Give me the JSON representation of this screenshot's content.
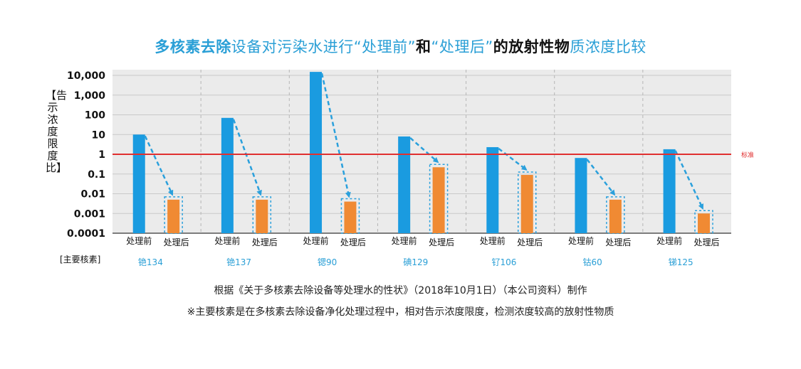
{
  "title": {
    "parts": [
      {
        "text": "多核素去除",
        "style": "hl"
      },
      {
        "text": "设备对污染水进行",
        "style": "nm"
      },
      {
        "text": "“处理前”",
        "style": "nm"
      },
      {
        "text": "和",
        "style": "bk"
      },
      {
        "text": "“处理后”",
        "style": "nm"
      },
      {
        "text": "的放射性物",
        "style": "bk"
      },
      {
        "text": "质浓度比较",
        "style": "nm"
      }
    ]
  },
  "y_axis_label": "【告示浓度限度比】",
  "nuclide_axis_label": "[主要核素]",
  "footnotes": {
    "source": "根据《关于多核素去除设备等处理水的性状》（2018年10月1日）（本公司资料）制作",
    "note": "※主要核素是在多核素去除设备净化处理过程中，相对告示浓度限度，检测浓度较高的放射性物质"
  },
  "colors": {
    "before": "#1a9be0",
    "after": "#f08a33",
    "arrow": "#2aa0dc",
    "standard_line": "#e03030",
    "plot_bg": "#ebebeb",
    "nuclide_text": "#2a9fd6"
  },
  "chart_data": {
    "type": "bar",
    "scale": "log",
    "ylim": [
      0.0001,
      10000
    ],
    "y_ticks": [
      "10,000",
      "1,000",
      "100",
      "10",
      "1",
      "0.1",
      "0.01",
      "0.001",
      "0.0001"
    ],
    "y_tick_values": [
      10000,
      1000,
      100,
      10,
      1,
      0.1,
      0.01,
      0.001,
      0.0001
    ],
    "categories": [
      "铯134",
      "铯137",
      "锶90",
      "碘129",
      "钌106",
      "钴60",
      "锑125"
    ],
    "bar_labels": [
      "处理前",
      "处理后"
    ],
    "series": [
      {
        "name": "处理前",
        "values": [
          10,
          70,
          15000,
          8,
          2.3,
          0.65,
          1.8
        ]
      },
      {
        "name": "处理后",
        "values": [
          0.005,
          0.005,
          0.004,
          0.22,
          0.09,
          0.005,
          0.001
        ]
      }
    ],
    "standard": {
      "value": 1,
      "label": "标准"
    },
    "grid": true
  }
}
